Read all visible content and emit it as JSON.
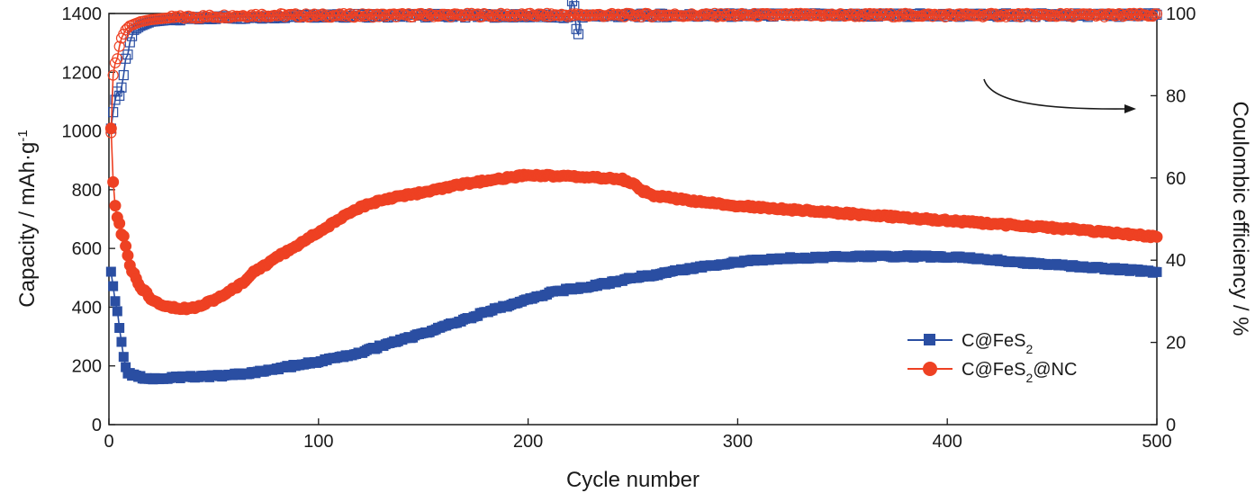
{
  "chart_data": {
    "type": "scatter",
    "xlabel": "Cycle number",
    "ylabel_left": {
      "base": "Capacity / mAh·g",
      "sup": "-1"
    },
    "ylabel_right": "Coulombic efficiency / %",
    "xlim": [
      0,
      500
    ],
    "ylim_left": [
      0,
      1400
    ],
    "ylim_right": [
      0,
      100
    ],
    "xticks": [
      0,
      100,
      200,
      300,
      400,
      500
    ],
    "yticks_left": [
      0,
      200,
      400,
      600,
      800,
      1000,
      1200,
      1400
    ],
    "yticks_right": [
      0,
      20,
      40,
      60,
      80,
      100
    ],
    "grid": false,
    "legend_position": "lower-right",
    "series": [
      {
        "name": "C@FeS2",
        "label": {
          "base": "C@FeS",
          "sub": "2",
          "rest": ""
        },
        "color": "#2a4ea2",
        "marker": "square",
        "axis": "left",
        "capacity_points": [
          [
            1,
            520
          ],
          [
            2,
            470
          ],
          [
            3,
            420
          ],
          [
            4,
            390
          ],
          [
            5,
            330
          ],
          [
            6,
            280
          ],
          [
            7,
            230
          ],
          [
            8,
            200
          ],
          [
            9,
            180
          ],
          [
            10,
            170
          ],
          [
            12,
            165
          ],
          [
            15,
            162
          ],
          [
            20,
            158
          ],
          [
            25,
            157
          ],
          [
            30,
            160
          ],
          [
            40,
            163
          ],
          [
            50,
            165
          ],
          [
            60,
            170
          ],
          [
            70,
            177
          ],
          [
            80,
            190
          ],
          [
            90,
            203
          ],
          [
            100,
            215
          ],
          [
            110,
            228
          ],
          [
            120,
            245
          ],
          [
            130,
            268
          ],
          [
            140,
            290
          ],
          [
            150,
            310
          ],
          [
            160,
            335
          ],
          [
            170,
            357
          ],
          [
            180,
            385
          ],
          [
            190,
            405
          ],
          [
            200,
            425
          ],
          [
            210,
            448
          ],
          [
            220,
            462
          ],
          [
            230,
            470
          ],
          [
            240,
            485
          ],
          [
            250,
            500
          ],
          [
            260,
            510
          ],
          [
            270,
            525
          ],
          [
            280,
            535
          ],
          [
            290,
            545
          ],
          [
            300,
            553
          ],
          [
            310,
            560
          ],
          [
            320,
            565
          ],
          [
            330,
            568
          ],
          [
            340,
            570
          ],
          [
            350,
            572
          ],
          [
            360,
            573
          ],
          [
            370,
            573
          ],
          [
            380,
            573
          ],
          [
            390,
            572
          ],
          [
            400,
            570
          ],
          [
            410,
            568
          ],
          [
            420,
            562
          ],
          [
            430,
            556
          ],
          [
            440,
            550
          ],
          [
            450,
            545
          ],
          [
            460,
            540
          ],
          [
            470,
            535
          ],
          [
            480,
            530
          ],
          [
            490,
            525
          ],
          [
            500,
            520
          ]
        ],
        "efficiency_points": [
          [
            1,
            72
          ],
          [
            2,
            76
          ],
          [
            3,
            79
          ],
          [
            4,
            81
          ],
          [
            5,
            80
          ],
          [
            6,
            82
          ],
          [
            7,
            85
          ],
          [
            8,
            89
          ],
          [
            9,
            90
          ],
          [
            10,
            93
          ],
          [
            12,
            96
          ],
          [
            15,
            97
          ],
          [
            20,
            98
          ],
          [
            30,
            98.5
          ],
          [
            50,
            99
          ],
          [
            100,
            99.4
          ],
          [
            150,
            99.5
          ],
          [
            200,
            99.4
          ],
          [
            220,
            99.2
          ],
          [
            221,
            103
          ],
          [
            222,
            102
          ],
          [
            223,
            96
          ],
          [
            224,
            95
          ],
          [
            225,
            99.4
          ],
          [
            250,
            99.5
          ],
          [
            300,
            99.6
          ],
          [
            400,
            99.6
          ],
          [
            500,
            99.6
          ]
        ]
      },
      {
        "name": "C@FeS2@NC",
        "label": {
          "base": "C@FeS",
          "sub": "2",
          "rest": "@NC"
        },
        "color": "#ee4123",
        "marker": "circle",
        "axis": "left",
        "capacity_points": [
          [
            1,
            1010
          ],
          [
            2,
            830
          ],
          [
            3,
            740
          ],
          [
            4,
            700
          ],
          [
            5,
            680
          ],
          [
            6,
            650
          ],
          [
            7,
            640
          ],
          [
            8,
            610
          ],
          [
            9,
            580
          ],
          [
            10,
            540
          ],
          [
            12,
            510
          ],
          [
            15,
            470
          ],
          [
            20,
            430
          ],
          [
            25,
            410
          ],
          [
            30,
            400
          ],
          [
            35,
            395
          ],
          [
            40,
            398
          ],
          [
            45,
            410
          ],
          [
            50,
            425
          ],
          [
            55,
            440
          ],
          [
            60,
            465
          ],
          [
            65,
            490
          ],
          [
            70,
            525
          ],
          [
            75,
            545
          ],
          [
            80,
            570
          ],
          [
            85,
            590
          ],
          [
            90,
            610
          ],
          [
            95,
            635
          ],
          [
            100,
            655
          ],
          [
            110,
            700
          ],
          [
            120,
            740
          ],
          [
            130,
            765
          ],
          [
            140,
            780
          ],
          [
            150,
            790
          ],
          [
            160,
            805
          ],
          [
            170,
            820
          ],
          [
            180,
            830
          ],
          [
            190,
            840
          ],
          [
            200,
            850
          ],
          [
            210,
            848
          ],
          [
            220,
            845
          ],
          [
            230,
            842
          ],
          [
            240,
            838
          ],
          [
            245,
            835
          ],
          [
            250,
            820
          ],
          [
            255,
            795
          ],
          [
            260,
            780
          ],
          [
            270,
            770
          ],
          [
            280,
            760
          ],
          [
            290,
            752
          ],
          [
            300,
            745
          ],
          [
            320,
            735
          ],
          [
            340,
            725
          ],
          [
            360,
            715
          ],
          [
            380,
            705
          ],
          [
            400,
            695
          ],
          [
            420,
            685
          ],
          [
            440,
            675
          ],
          [
            460,
            665
          ],
          [
            480,
            652
          ],
          [
            500,
            640
          ]
        ],
        "efficiency_points": [
          [
            1,
            71
          ],
          [
            2,
            85
          ],
          [
            3,
            88
          ],
          [
            4,
            89
          ],
          [
            5,
            92
          ],
          [
            6,
            94
          ],
          [
            8,
            96
          ],
          [
            10,
            97
          ],
          [
            15,
            98
          ],
          [
            20,
            98.5
          ],
          [
            30,
            99
          ],
          [
            50,
            99.3
          ],
          [
            70,
            99.6
          ],
          [
            100,
            99.5
          ],
          [
            150,
            99.6
          ],
          [
            200,
            99.6
          ],
          [
            250,
            99.6
          ],
          [
            300,
            99.6
          ],
          [
            400,
            99.6
          ],
          [
            500,
            99.6
          ]
        ]
      }
    ],
    "annotation": "arrow pointing to the right axis (efficiency curves)"
  }
}
